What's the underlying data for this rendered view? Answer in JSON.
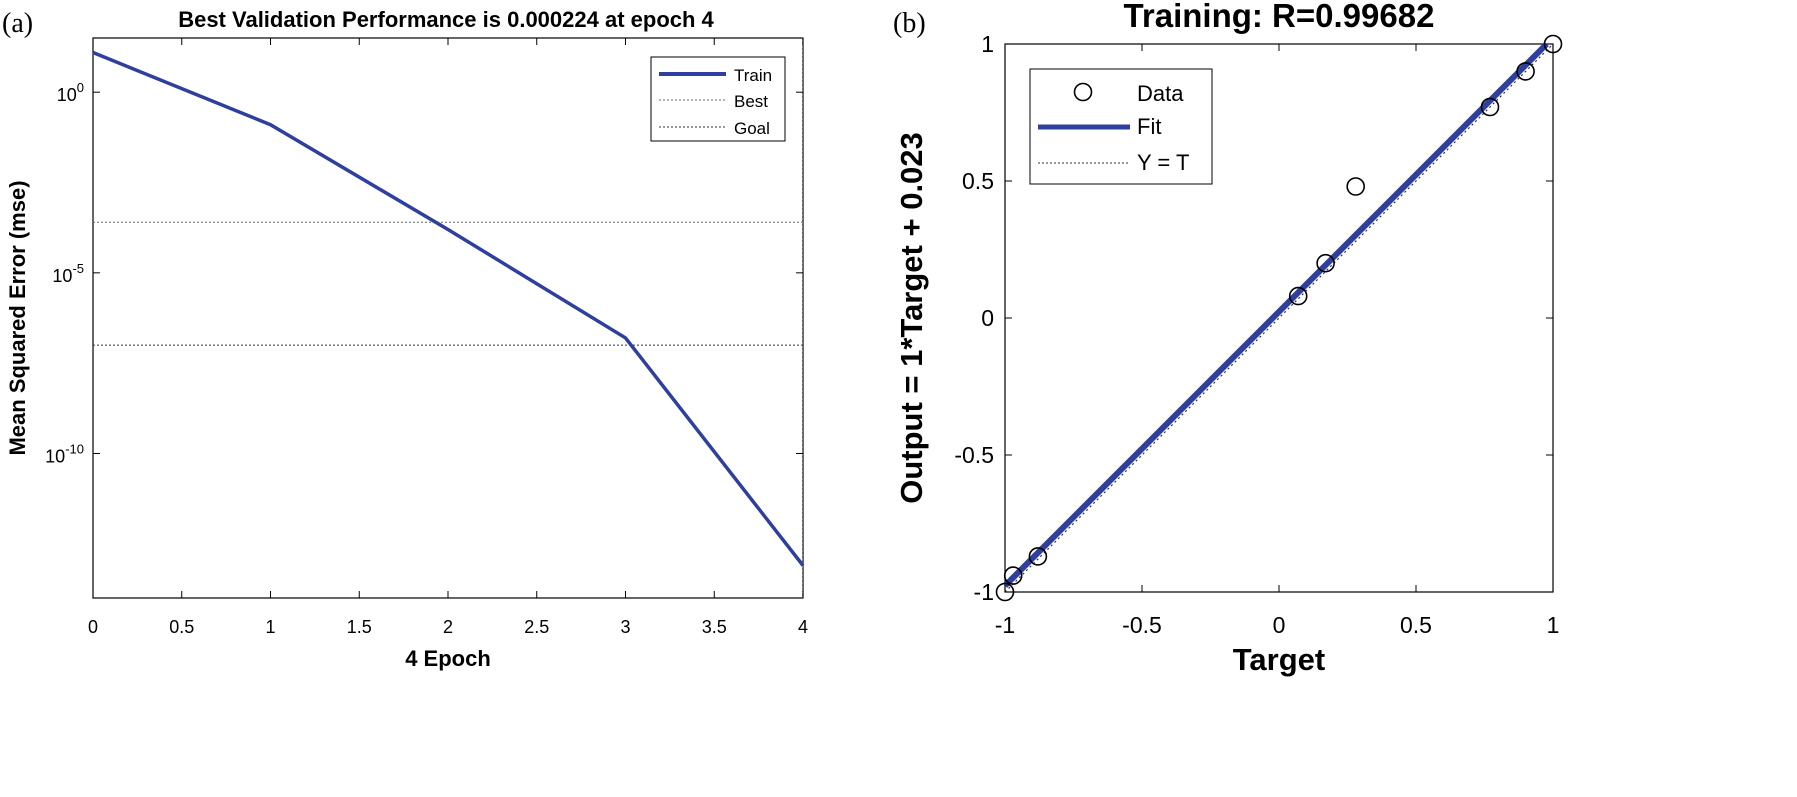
{
  "chart_data": [
    {
      "panel_label": "(a)",
      "type": "line",
      "title": "Best Validation Performance is 0.000224 at epoch 4",
      "xlabel": "4 Epoch",
      "ylabel": "Mean Squared Error  (mse)",
      "yscale": "log",
      "xlim": [
        0,
        4
      ],
      "ylim_log10": [
        -14,
        1.5
      ],
      "xticks": [
        "0",
        "0.5",
        "1",
        "1.5",
        "2",
        "2.5",
        "3",
        "3.5",
        "4"
      ],
      "xtick_values": [
        0,
        0.5,
        1,
        1.5,
        2,
        2.5,
        3,
        3.5,
        4
      ],
      "yticks": [
        {
          "base": "10",
          "exp": "0",
          "value_log10": 0
        },
        {
          "base": "10",
          "exp": "-5",
          "value_log10": -5
        },
        {
          "base": "10",
          "exp": "-10",
          "value_log10": -10
        }
      ],
      "series": [
        {
          "name": "Train",
          "color": "#2e3f9e",
          "x": [
            0,
            1,
            2,
            3,
            4
          ],
          "log10_y": [
            1.1,
            -0.9,
            -3.8,
            -6.8,
            -13.1
          ]
        }
      ],
      "reference_lines": [
        {
          "name": "Best",
          "log10_y": -3.6
        },
        {
          "name": "Goal",
          "log10_y": -7.0
        }
      ],
      "best_epoch": 4,
      "legend": {
        "position": "top-right",
        "entries": [
          "Train",
          "Best",
          "Goal"
        ]
      }
    },
    {
      "panel_label": "(b)",
      "type": "scatter",
      "title": "Training: R=0.99682",
      "xlabel": "Target",
      "ylabel": "Output = 1*Target + 0.023",
      "xlim": [
        -1,
        1
      ],
      "ylim": [
        -1,
        1
      ],
      "xticks": [
        "-1",
        "-0.5",
        "0",
        "0.5",
        "1"
      ],
      "xtick_values": [
        -1,
        -0.5,
        0,
        0.5,
        1
      ],
      "yticks": [
        "-1",
        "-0.5",
        "0",
        "0.5",
        "1"
      ],
      "ytick_values": [
        -1,
        -0.5,
        0,
        0.5,
        1
      ],
      "points": [
        {
          "x": -1.0,
          "y": -1.0
        },
        {
          "x": -0.97,
          "y": -0.94
        },
        {
          "x": -0.88,
          "y": -0.87
        },
        {
          "x": 0.07,
          "y": 0.08
        },
        {
          "x": 0.17,
          "y": 0.2
        },
        {
          "x": 0.28,
          "y": 0.48
        },
        {
          "x": 0.77,
          "y": 0.77
        },
        {
          "x": 0.9,
          "y": 0.9
        },
        {
          "x": 1.0,
          "y": 1.0
        }
      ],
      "fit": {
        "slope": 1,
        "intercept": 0.023,
        "color": "#2e3f9e"
      },
      "legend": {
        "position": "top-left",
        "entries": [
          "Data",
          "Fit",
          "Y = T"
        ]
      }
    }
  ]
}
